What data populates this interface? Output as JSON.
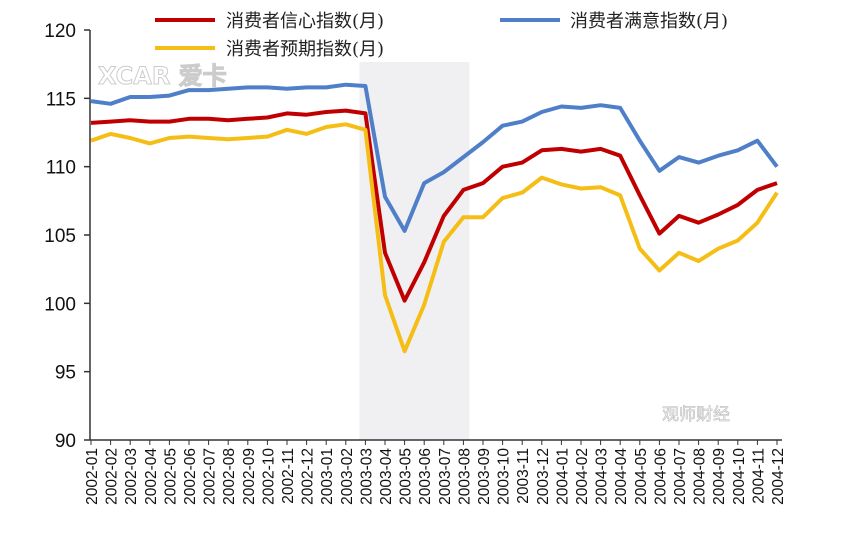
{
  "chart_data": {
    "type": "line",
    "title": "",
    "xlabel": "",
    "ylabel": "",
    "ylim": [
      90,
      120
    ],
    "yticks": [
      90,
      95,
      100,
      105,
      110,
      115,
      120
    ],
    "grid": false,
    "legend_placement": "top",
    "shaded_range": [
      "2003-03",
      "2003-08"
    ],
    "categories": [
      "2002-01",
      "2002-02",
      "2002-03",
      "2002-04",
      "2002-05",
      "2002-06",
      "2002-07",
      "2002-08",
      "2002-09",
      "2002-10",
      "2002-11",
      "2002-12",
      "2003-01",
      "2003-02",
      "2003-03",
      "2003-04",
      "2003-05",
      "2003-06",
      "2003-07",
      "2003-08",
      "2003-09",
      "2003-10",
      "2003-11",
      "2003-12",
      "2004-01",
      "2004-02",
      "2004-03",
      "2004-04",
      "2004-05",
      "2004-06",
      "2004-07",
      "2004-08",
      "2004-09",
      "2004-10",
      "2004-11",
      "2004-12"
    ],
    "series": [
      {
        "name": "消费者信心指数(月)",
        "color": "#c00000",
        "values": [
          113.2,
          113.3,
          113.4,
          113.3,
          113.3,
          113.5,
          113.5,
          113.4,
          113.5,
          113.6,
          113.9,
          113.8,
          114.0,
          114.1,
          113.9,
          103.7,
          100.2,
          103.0,
          106.4,
          108.3,
          108.8,
          110.0,
          110.3,
          111.2,
          111.3,
          111.1,
          111.3,
          110.8,
          107.9,
          105.1,
          106.4,
          105.9,
          106.5,
          107.2,
          108.3,
          108.8
        ]
      },
      {
        "name": "消费者满意指数(月)",
        "color": "#4f7fc9",
        "values": [
          114.8,
          114.6,
          115.1,
          115.1,
          115.2,
          115.6,
          115.6,
          115.7,
          115.8,
          115.8,
          115.7,
          115.8,
          115.8,
          116.0,
          115.9,
          107.8,
          105.3,
          108.8,
          109.6,
          110.7,
          111.8,
          113.0,
          113.3,
          114.0,
          114.4,
          114.3,
          114.5,
          114.3,
          111.9,
          109.7,
          110.7,
          110.3,
          110.8,
          111.2,
          111.9,
          110.0
        ]
      },
      {
        "name": "消费者预期指数(月)",
        "color": "#f5be16",
        "values": [
          111.9,
          112.4,
          112.1,
          111.7,
          112.1,
          112.2,
          112.1,
          112.0,
          112.1,
          112.2,
          112.7,
          112.4,
          112.9,
          113.1,
          112.7,
          100.6,
          96.5,
          99.9,
          104.5,
          106.3,
          106.3,
          107.7,
          108.1,
          109.2,
          108.7,
          108.4,
          108.5,
          107.9,
          104.0,
          102.4,
          103.7,
          103.1,
          104.0,
          104.6,
          105.9,
          108.1
        ]
      }
    ]
  },
  "watermarks": {
    "top_left": "XCAR 爱卡",
    "bottom_right": "观师财经"
  }
}
